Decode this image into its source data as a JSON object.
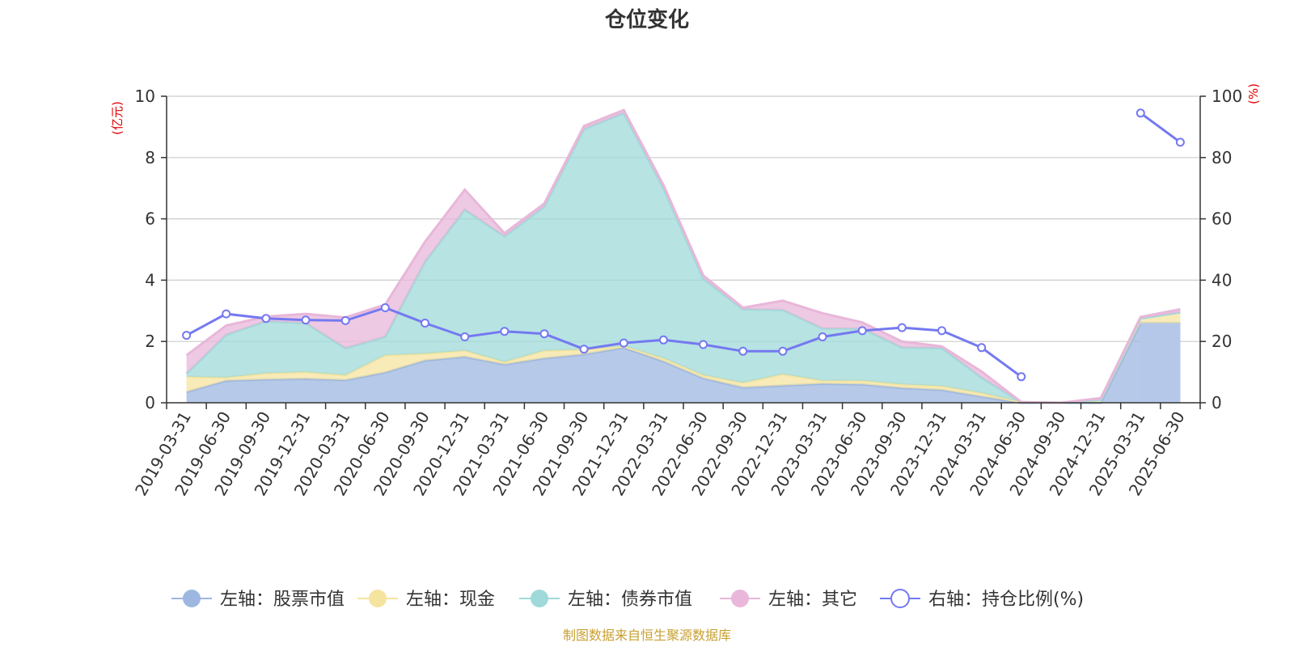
{
  "chart_data": {
    "type": "area",
    "title": "仓位变化",
    "left_axis_unit": "(亿元)",
    "right_axis_unit": "(%)",
    "left_ylim": [
      0,
      10
    ],
    "left_ticks": [
      "0",
      "2",
      "4",
      "6",
      "8",
      "10"
    ],
    "right_ylim": [
      0,
      100
    ],
    "right_ticks": [
      "0",
      "20",
      "40",
      "60",
      "80",
      "100"
    ],
    "categories": [
      "2019-03-31",
      "2019-06-30",
      "2019-09-30",
      "2019-12-31",
      "2020-03-31",
      "2020-06-30",
      "2020-09-30",
      "2020-12-31",
      "2021-03-31",
      "2021-06-30",
      "2021-09-30",
      "2021-12-31",
      "2022-03-31",
      "2022-06-30",
      "2022-09-30",
      "2022-12-31",
      "2023-03-31",
      "2023-06-30",
      "2023-09-30",
      "2023-12-31",
      "2024-03-31",
      "2024-06-30",
      "2024-09-30",
      "2024-12-31",
      "2025-03-31",
      "2025-06-30"
    ],
    "stacked_series": [
      {
        "name": "左轴：股票市值",
        "color": "#9db7e0",
        "values": [
          0.35,
          0.72,
          0.76,
          0.78,
          0.74,
          0.99,
          1.38,
          1.5,
          1.25,
          1.45,
          1.58,
          1.8,
          1.35,
          0.8,
          0.5,
          0.56,
          0.62,
          0.6,
          0.48,
          0.42,
          0.2,
          0.0,
          0.0,
          0.0,
          2.6,
          2.6
        ]
      },
      {
        "name": "左轴：现金",
        "color": "#f5e4a0",
        "values": [
          0.5,
          0.1,
          0.2,
          0.22,
          0.16,
          0.56,
          0.22,
          0.2,
          0.08,
          0.25,
          0.15,
          0.05,
          0.1,
          0.1,
          0.15,
          0.37,
          0.1,
          0.12,
          0.12,
          0.12,
          0.12,
          0.02,
          0.0,
          0.1,
          0.15,
          0.35
        ]
      },
      {
        "name": "左轴：债券市值",
        "color": "#9fd9d9",
        "values": [
          0.1,
          1.4,
          1.7,
          1.6,
          0.88,
          0.6,
          3.0,
          4.6,
          4.1,
          4.7,
          7.2,
          7.6,
          5.55,
          3.15,
          2.4,
          2.1,
          1.7,
          1.7,
          1.2,
          1.25,
          0.5,
          0.0,
          0.0,
          0.0,
          0.0,
          0.0
        ]
      },
      {
        "name": "左轴：其它",
        "color": "#e8b7d9",
        "values": [
          0.6,
          0.3,
          0.15,
          0.3,
          1.0,
          1.05,
          0.65,
          0.65,
          0.1,
          0.1,
          0.1,
          0.1,
          0.1,
          0.1,
          0.05,
          0.3,
          0.5,
          0.2,
          0.2,
          0.05,
          0.2,
          0.0,
          0.0,
          0.05,
          0.05,
          0.1
        ]
      }
    ],
    "ratio_series": {
      "name": "右轴：持仓比例(%)",
      "color": "#7479f0",
      "values": [
        22,
        29,
        27.5,
        27,
        26.8,
        31,
        26,
        21.5,
        23.3,
        22.5,
        17.5,
        19.5,
        20.5,
        19,
        16.8,
        16.8,
        21.5,
        23.5,
        24.5,
        23.5,
        18,
        8.5,
        null,
        null,
        94.5,
        85
      ]
    },
    "legend_position": "bottom",
    "grid": true,
    "source_note": "制图数据来自恒生聚源数据库"
  }
}
